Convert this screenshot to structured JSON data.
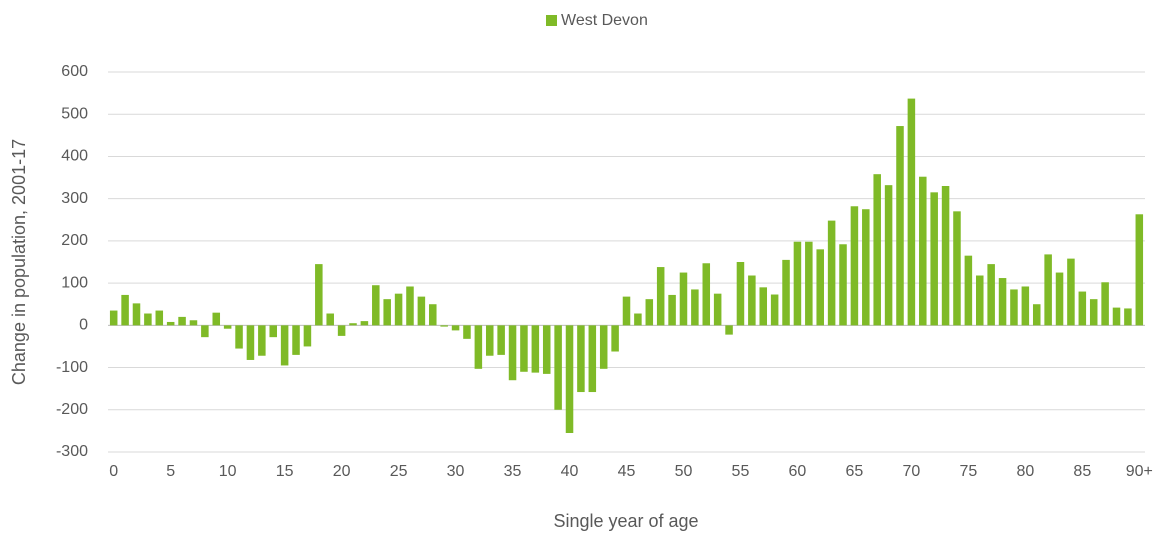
{
  "chart_data": {
    "type": "bar",
    "series": [
      {
        "name": "West Devon",
        "color": "#7fba27",
        "values": [
          35,
          72,
          52,
          28,
          35,
          8,
          20,
          12,
          -28,
          30,
          -8,
          -55,
          -82,
          -72,
          -28,
          -95,
          -70,
          -50,
          145,
          28,
          -25,
          5,
          10,
          95,
          62,
          75,
          92,
          68,
          50,
          -3,
          -12,
          -32,
          -103,
          -72,
          -70,
          -130,
          -110,
          -112,
          -115,
          -200,
          -255,
          -158,
          -158,
          -103,
          -62,
          68,
          28,
          62,
          138,
          72,
          125,
          85,
          147,
          75,
          -22,
          150,
          118,
          90,
          73,
          155,
          198,
          198,
          180,
          248,
          192,
          282,
          275,
          358,
          332,
          472,
          537,
          352,
          315,
          330,
          270,
          165,
          118,
          145,
          112,
          85,
          92,
          50,
          168,
          125,
          158,
          80,
          62,
          102,
          42,
          40,
          263
        ]
      }
    ],
    "categories": [
      "0",
      null,
      null,
      null,
      null,
      "5",
      null,
      null,
      null,
      null,
      "10",
      null,
      null,
      null,
      null,
      "15",
      null,
      null,
      null,
      null,
      "20",
      null,
      null,
      null,
      null,
      "25",
      null,
      null,
      null,
      null,
      "30",
      null,
      null,
      null,
      null,
      "35",
      null,
      null,
      null,
      null,
      "40",
      null,
      null,
      null,
      null,
      "45",
      null,
      null,
      null,
      null,
      "50",
      null,
      null,
      null,
      null,
      "55",
      null,
      null,
      null,
      null,
      "60",
      null,
      null,
      null,
      null,
      "65",
      null,
      null,
      null,
      null,
      "70",
      null,
      null,
      null,
      null,
      "75",
      null,
      null,
      null,
      null,
      "80",
      null,
      null,
      null,
      null,
      "85",
      null,
      null,
      null,
      null,
      "90+"
    ],
    "x_label": "Single year of age",
    "y_label": "Change in population, 2001-17",
    "ylim": [
      -300,
      600
    ],
    "yticks": [
      -300,
      -200,
      -100,
      0,
      100,
      200,
      300,
      400,
      500,
      600
    ],
    "grid": true,
    "legend": "top"
  }
}
